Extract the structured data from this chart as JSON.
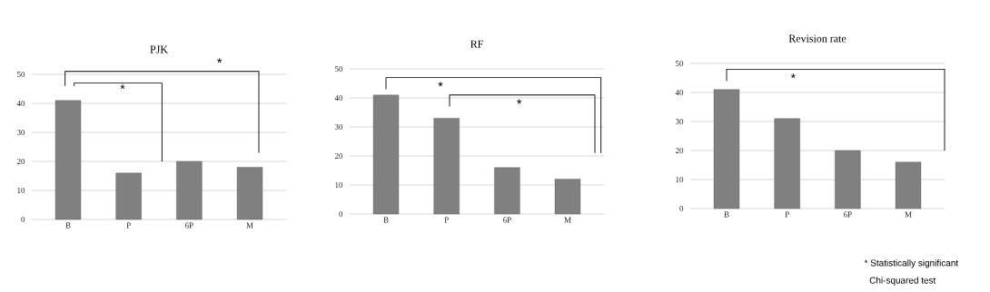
{
  "chart_data": [
    {
      "type": "bar",
      "title": "PJK",
      "categories": [
        "B",
        "P",
        "6P",
        "M"
      ],
      "values": [
        41,
        16,
        20,
        18
      ],
      "color": "#808080",
      "ylim": [
        0,
        50
      ],
      "yticks": [
        0,
        10,
        20,
        30,
        40,
        50
      ],
      "grid": "y",
      "annotations": [
        "*",
        "*"
      ]
    },
    {
      "type": "bar",
      "title": "RF",
      "categories": [
        "B",
        "P",
        "6P",
        "M"
      ],
      "values": [
        41,
        33,
        16,
        12
      ],
      "color": "#808080",
      "ylim": [
        0,
        50
      ],
      "yticks": [
        0,
        10,
        20,
        30,
        40,
        50
      ],
      "grid": "y",
      "annotations": [
        "*",
        "*"
      ]
    },
    {
      "type": "bar",
      "title": "Revision rate",
      "categories": [
        "B",
        "P",
        "6P",
        "M"
      ],
      "values": [
        41,
        31,
        20,
        16
      ],
      "color": "#808080",
      "ylim": [
        0,
        50
      ],
      "yticks": [
        0,
        10,
        20,
        30,
        40,
        50
      ],
      "grid": "y",
      "annotations": [
        "*",
        "* Statistically significant",
        "Chi-squared test"
      ]
    }
  ]
}
